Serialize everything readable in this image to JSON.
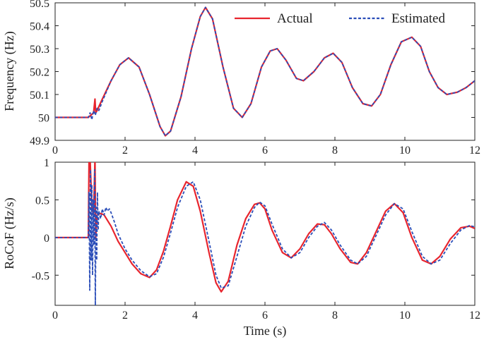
{
  "colors": {
    "actual": "#e8252e",
    "estimated": "#2a4db8",
    "axis": "#222222"
  },
  "chart_data": [
    {
      "type": "line",
      "xlabel": "",
      "ylabel": "Frequency (Hz)",
      "xlim": [
        0,
        12
      ],
      "ylim": [
        49.9,
        50.5
      ],
      "xticks": [
        "0",
        "2",
        "4",
        "6",
        "8",
        "10",
        "12"
      ],
      "yticks": [
        "49.9",
        "50",
        "50.1",
        "50.2",
        "50.3",
        "50.4",
        "50.5"
      ],
      "grid": false,
      "legend": {
        "position": "top-right",
        "entries": [
          "Actual",
          "Estimated"
        ]
      },
      "series": [
        {
          "name": "Actual",
          "style": "solid",
          "x": [
            0,
            0.5,
            0.95,
            1.1,
            1.14,
            1.16,
            1.2,
            1.35,
            1.6,
            1.85,
            2.1,
            2.4,
            2.7,
            3.0,
            3.15,
            3.3,
            3.6,
            3.9,
            4.15,
            4.3,
            4.5,
            4.8,
            5.1,
            5.35,
            5.6,
            5.9,
            6.15,
            6.35,
            6.6,
            6.9,
            7.1,
            7.4,
            7.7,
            7.95,
            8.2,
            8.5,
            8.8,
            9.05,
            9.3,
            9.6,
            9.9,
            10.2,
            10.45,
            10.7,
            10.95,
            11.2,
            11.5,
            11.75,
            12.0
          ],
          "y": [
            50.0,
            50.0,
            50.0,
            50.02,
            50.08,
            50.02,
            50.03,
            50.08,
            50.16,
            50.23,
            50.26,
            50.22,
            50.1,
            49.96,
            49.92,
            49.94,
            50.09,
            50.3,
            50.44,
            50.48,
            50.43,
            50.22,
            50.04,
            50.0,
            50.06,
            50.22,
            50.29,
            50.3,
            50.25,
            50.17,
            50.16,
            50.2,
            50.26,
            50.28,
            50.24,
            50.13,
            50.06,
            50.05,
            50.1,
            50.23,
            50.33,
            50.35,
            50.31,
            50.2,
            50.13,
            50.1,
            50.11,
            50.13,
            50.16
          ]
        },
        {
          "name": "Estimated",
          "style": "dashed",
          "x": [
            0,
            0.5,
            0.95,
            1.0,
            1.05,
            1.1,
            1.15,
            1.2,
            1.25,
            1.35,
            1.6,
            1.85,
            2.1,
            2.4,
            2.7,
            3.0,
            3.15,
            3.3,
            3.6,
            3.9,
            4.15,
            4.3,
            4.5,
            4.8,
            5.1,
            5.35,
            5.6,
            5.9,
            6.15,
            6.35,
            6.6,
            6.9,
            7.1,
            7.4,
            7.7,
            7.95,
            8.2,
            8.5,
            8.8,
            9.05,
            9.3,
            9.6,
            9.9,
            10.2,
            10.45,
            10.7,
            10.95,
            11.2,
            11.5,
            11.75,
            12.0
          ],
          "y": [
            50.0,
            50.0,
            50.0,
            50.02,
            49.99,
            50.03,
            50.01,
            50.04,
            50.03,
            50.07,
            50.16,
            50.23,
            50.26,
            50.22,
            50.1,
            49.96,
            49.92,
            49.94,
            50.09,
            50.3,
            50.44,
            50.48,
            50.43,
            50.22,
            50.04,
            50.0,
            50.06,
            50.22,
            50.29,
            50.3,
            50.25,
            50.17,
            50.16,
            50.2,
            50.26,
            50.28,
            50.24,
            50.13,
            50.06,
            50.05,
            50.1,
            50.23,
            50.33,
            50.35,
            50.31,
            50.2,
            50.13,
            50.1,
            50.11,
            50.13,
            50.16
          ]
        }
      ]
    },
    {
      "type": "line",
      "xlabel": "Time (s)",
      "ylabel": "RoCoF (Hz/s)",
      "xlim": [
        0,
        12
      ],
      "ylim": [
        -0.9,
        1.0
      ],
      "xticks": [
        "0",
        "2",
        "4",
        "6",
        "8",
        "10",
        "12"
      ],
      "yticks": [
        "-0.5",
        "0",
        "0.5",
        "1"
      ],
      "grid": false,
      "series": [
        {
          "name": "Actual",
          "style": "solid",
          "x": [
            0,
            0.5,
            0.95,
            0.97,
            1.0,
            1.05,
            1.1,
            1.14,
            1.16,
            1.2,
            1.3,
            1.4,
            1.6,
            1.8,
            2.0,
            2.2,
            2.45,
            2.7,
            2.9,
            3.1,
            3.3,
            3.5,
            3.75,
            3.95,
            4.15,
            4.4,
            4.6,
            4.75,
            4.95,
            5.2,
            5.45,
            5.7,
            5.85,
            6.0,
            6.2,
            6.5,
            6.75,
            7.0,
            7.25,
            7.5,
            7.7,
            7.9,
            8.15,
            8.45,
            8.65,
            8.9,
            9.2,
            9.45,
            9.7,
            9.95,
            10.2,
            10.5,
            10.75,
            11.0,
            11.3,
            11.6,
            11.85,
            12.0
          ],
          "y": [
            0,
            0,
            0,
            1.05,
            1.05,
            0.4,
            0.3,
            1.05,
            0.0,
            0.3,
            0.32,
            0.3,
            0.15,
            -0.05,
            -0.2,
            -0.35,
            -0.48,
            -0.53,
            -0.43,
            -0.18,
            0.15,
            0.5,
            0.74,
            0.68,
            0.35,
            -0.2,
            -0.6,
            -0.72,
            -0.58,
            -0.1,
            0.25,
            0.44,
            0.46,
            0.38,
            0.1,
            -0.2,
            -0.27,
            -0.15,
            0.05,
            0.18,
            0.17,
            0.05,
            -0.15,
            -0.33,
            -0.35,
            -0.2,
            0.1,
            0.35,
            0.45,
            0.33,
            0.0,
            -0.3,
            -0.35,
            -0.25,
            -0.02,
            0.13,
            0.15,
            0.12
          ]
        },
        {
          "name": "Estimated",
          "style": "dashed",
          "x": [
            0,
            0.5,
            0.95,
            0.97,
            0.99,
            1.01,
            1.03,
            1.05,
            1.07,
            1.09,
            1.11,
            1.13,
            1.15,
            1.17,
            1.19,
            1.21,
            1.23,
            1.25,
            1.3,
            1.35,
            1.4,
            1.45,
            1.5,
            1.55,
            1.6,
            1.7,
            1.8,
            2.0,
            2.2,
            2.45,
            2.7,
            2.9,
            3.1,
            3.3,
            3.5,
            3.75,
            3.95,
            4.15,
            4.4,
            4.6,
            4.75,
            4.95,
            5.2,
            5.45,
            5.7,
            5.85,
            6.0,
            6.2,
            6.5,
            6.75,
            7.0,
            7.25,
            7.5,
            7.7,
            7.9,
            8.15,
            8.45,
            8.65,
            8.9,
            9.2,
            9.45,
            9.7,
            9.95,
            10.2,
            10.5,
            10.75,
            11.0,
            11.3,
            11.6,
            11.85,
            12.0
          ],
          "y": [
            0,
            0,
            0,
            0.6,
            -0.7,
            0.9,
            -0.3,
            0.7,
            -0.5,
            0.5,
            -0.1,
            0.9,
            -0.9,
            0.4,
            -0.3,
            0.6,
            0.1,
            0.35,
            0.25,
            0.38,
            0.3,
            0.4,
            0.35,
            0.38,
            0.33,
            0.2,
            0.05,
            -0.15,
            -0.3,
            -0.44,
            -0.52,
            -0.48,
            -0.26,
            0.06,
            0.4,
            0.68,
            0.74,
            0.5,
            -0.05,
            -0.5,
            -0.67,
            -0.64,
            -0.25,
            0.15,
            0.4,
            0.47,
            0.42,
            0.18,
            -0.15,
            -0.27,
            -0.2,
            0.0,
            0.15,
            0.2,
            0.1,
            -0.1,
            -0.3,
            -0.35,
            -0.25,
            0.05,
            0.3,
            0.45,
            0.38,
            0.08,
            -0.25,
            -0.35,
            -0.3,
            -0.08,
            0.1,
            0.16,
            0.14
          ]
        }
      ]
    }
  ]
}
